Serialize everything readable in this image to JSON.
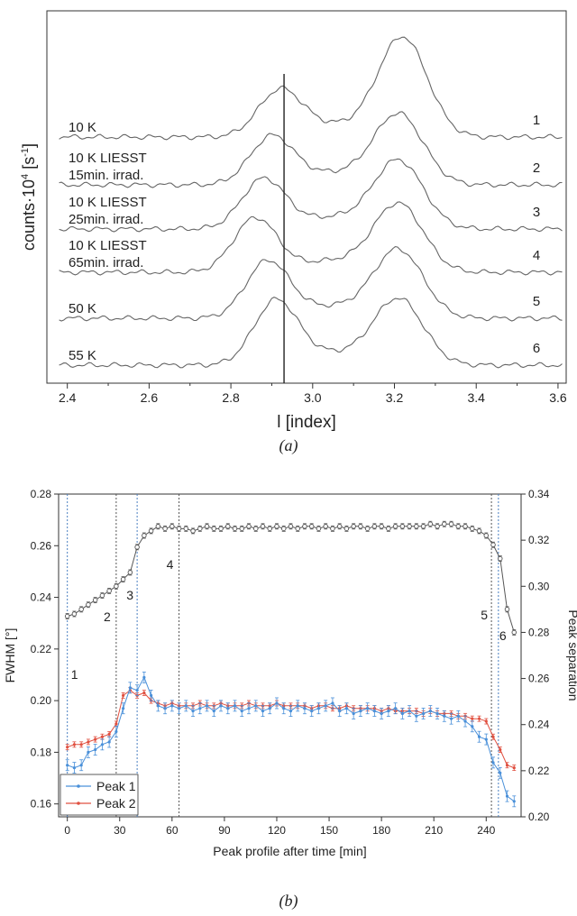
{
  "chart_data": [
    {
      "type": "line",
      "panel_caption": "(a)",
      "xlabel": "l [index]",
      "ylabel_base": "counts·10",
      "ylabel_sup": "4",
      "ylabel_unit": " [s",
      "ylabel_unit_sup": "-1",
      "ylabel_end": "]",
      "xlim": [
        2.35,
        3.62
      ],
      "xticks": [
        "2.4",
        "2.6",
        "2.8",
        "3.0",
        "3.2",
        "3.4",
        "3.6"
      ],
      "vertical_line_x": 2.93,
      "grid": false,
      "series": [
        {
          "number": "1",
          "label_lines": [
            "10 K"
          ],
          "peak1_x": 2.92,
          "peak1_h": 1.0,
          "peak2_x": 3.22,
          "peak2_h": 2.2
        },
        {
          "number": "2",
          "label_lines": [
            "10 K LIESST",
            "15min. irrad."
          ],
          "peak1_x": 2.9,
          "peak1_h": 1.05,
          "peak2_x": 3.21,
          "peak2_h": 1.55
        },
        {
          "number": "3",
          "label_lines": [
            "10 K LIESST",
            "25min. irrad."
          ],
          "peak1_x": 2.88,
          "peak1_h": 1.1,
          "peak2_x": 3.21,
          "peak2_h": 1.5
        },
        {
          "number": "4",
          "label_lines": [
            "10 K LIESST",
            "65min. irrad."
          ],
          "peak1_x": 2.86,
          "peak1_h": 1.2,
          "peak2_x": 3.21,
          "peak2_h": 1.5
        },
        {
          "number": "5",
          "label_lines": [
            "50 K"
          ],
          "peak1_x": 2.89,
          "peak1_h": 1.25,
          "peak2_x": 3.21,
          "peak2_h": 1.5
        },
        {
          "number": "6",
          "label_lines": [
            "55 K"
          ],
          "peak1_x": 2.91,
          "peak1_h": 1.4,
          "peak2_x": 3.21,
          "peak2_h": 1.45
        }
      ]
    },
    {
      "type": "line",
      "panel_caption": "(b)",
      "xlabel": "Peak profile after time [min]",
      "ylabel_left": "FWHM [°]",
      "ylabel_right": "Peak separation",
      "xlim": [
        -5,
        260
      ],
      "ylim_left": [
        0.155,
        0.28
      ],
      "ylim_right": [
        0.2,
        0.34
      ],
      "xticks": [
        "0",
        "30",
        "60",
        "90",
        "120",
        "150",
        "180",
        "210",
        "240"
      ],
      "yticks_left": [
        "0.16",
        "0.18",
        "0.20",
        "0.22",
        "0.24",
        "0.26",
        "0.28"
      ],
      "yticks_right": [
        "0.20",
        "0.22",
        "0.24",
        "0.26",
        "0.28",
        "0.30",
        "0.32",
        "0.34"
      ],
      "vlines": [
        {
          "x": 0,
          "label": "1",
          "color": "#4a7fc1"
        },
        {
          "x": 28,
          "label": "2",
          "color": "#555555"
        },
        {
          "x": 40,
          "label": "3",
          "color": "#4a7fc1"
        },
        {
          "x": 64,
          "label": "4",
          "color": "#555555"
        },
        {
          "x": 243,
          "label": "5",
          "color": "#555555"
        },
        {
          "x": 247,
          "label": "6",
          "color": "#4a7fc1"
        }
      ],
      "legend": [
        {
          "name": "Peak 1",
          "color": "#4a90d9"
        },
        {
          "name": "Peak 2",
          "color": "#e05040"
        }
      ],
      "x": [
        0,
        4,
        8,
        12,
        16,
        20,
        24,
        28,
        32,
        36,
        40,
        44,
        48,
        52,
        56,
        60,
        64,
        68,
        72,
        76,
        80,
        84,
        88,
        92,
        96,
        100,
        104,
        108,
        112,
        116,
        120,
        124,
        128,
        132,
        136,
        140,
        144,
        148,
        152,
        156,
        160,
        164,
        168,
        172,
        176,
        180,
        184,
        188,
        192,
        196,
        200,
        204,
        208,
        212,
        216,
        220,
        224,
        228,
        232,
        236,
        240,
        244,
        248,
        252,
        256
      ],
      "series": [
        {
          "name": "Peak separation",
          "axis": "right",
          "color": "#555555",
          "values": [
            0.287,
            0.288,
            0.29,
            0.292,
            0.294,
            0.296,
            0.298,
            0.3,
            0.303,
            0.306,
            0.317,
            0.322,
            0.324,
            0.326,
            0.325,
            0.326,
            0.325,
            0.325,
            0.324,
            0.325,
            0.326,
            0.325,
            0.325,
            0.326,
            0.325,
            0.325,
            0.326,
            0.325,
            0.326,
            0.325,
            0.326,
            0.325,
            0.326,
            0.325,
            0.326,
            0.326,
            0.325,
            0.326,
            0.325,
            0.326,
            0.325,
            0.326,
            0.326,
            0.325,
            0.326,
            0.326,
            0.325,
            0.326,
            0.326,
            0.326,
            0.326,
            0.326,
            0.327,
            0.326,
            0.327,
            0.327,
            0.326,
            0.326,
            0.325,
            0.324,
            0.322,
            0.318,
            0.312,
            0.29,
            0.28
          ]
        },
        {
          "name": "Peak 1",
          "axis": "left",
          "color": "#4a90d9",
          "values": [
            0.175,
            0.174,
            0.175,
            0.18,
            0.181,
            0.183,
            0.184,
            0.188,
            0.197,
            0.205,
            0.204,
            0.209,
            0.202,
            0.198,
            0.197,
            0.198,
            0.197,
            0.198,
            0.196,
            0.197,
            0.198,
            0.196,
            0.198,
            0.197,
            0.198,
            0.196,
            0.197,
            0.198,
            0.196,
            0.197,
            0.199,
            0.197,
            0.196,
            0.198,
            0.197,
            0.196,
            0.197,
            0.198,
            0.199,
            0.196,
            0.197,
            0.195,
            0.196,
            0.197,
            0.196,
            0.195,
            0.196,
            0.197,
            0.195,
            0.196,
            0.194,
            0.195,
            0.196,
            0.195,
            0.194,
            0.193,
            0.194,
            0.192,
            0.19,
            0.186,
            0.185,
            0.176,
            0.172,
            0.163,
            0.161
          ]
        },
        {
          "name": "Peak 2",
          "axis": "left",
          "color": "#e05040",
          "values": [
            0.182,
            0.183,
            0.183,
            0.184,
            0.185,
            0.186,
            0.187,
            0.191,
            0.202,
            0.204,
            0.202,
            0.203,
            0.2,
            0.199,
            0.198,
            0.199,
            0.198,
            0.198,
            0.198,
            0.199,
            0.198,
            0.198,
            0.199,
            0.198,
            0.198,
            0.198,
            0.199,
            0.198,
            0.198,
            0.198,
            0.199,
            0.198,
            0.198,
            0.198,
            0.198,
            0.197,
            0.198,
            0.198,
            0.197,
            0.197,
            0.198,
            0.197,
            0.197,
            0.197,
            0.197,
            0.196,
            0.197,
            0.196,
            0.196,
            0.196,
            0.196,
            0.195,
            0.196,
            0.195,
            0.195,
            0.195,
            0.194,
            0.194,
            0.193,
            0.193,
            0.192,
            0.186,
            0.181,
            0.175,
            0.174
          ]
        }
      ]
    }
  ]
}
